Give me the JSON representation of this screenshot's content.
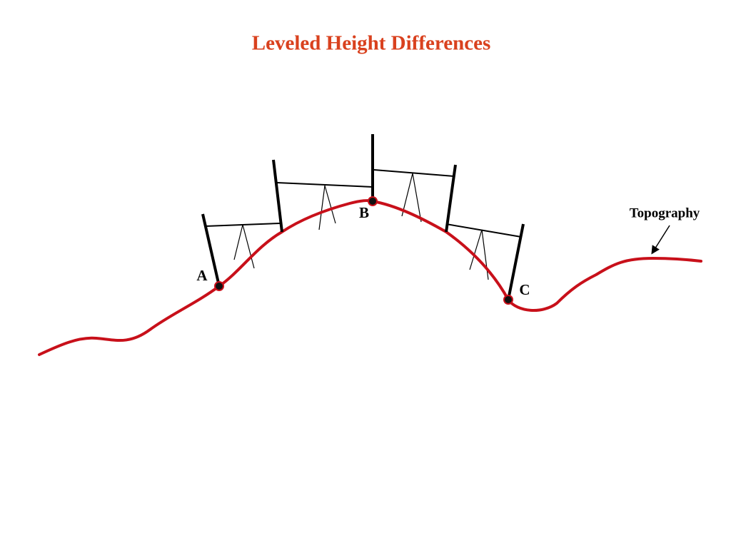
{
  "title": "Leveled Height Differences",
  "points": [
    {
      "label": "A"
    },
    {
      "label": "B"
    },
    {
      "label": "C"
    }
  ],
  "topography_label": "Topography"
}
